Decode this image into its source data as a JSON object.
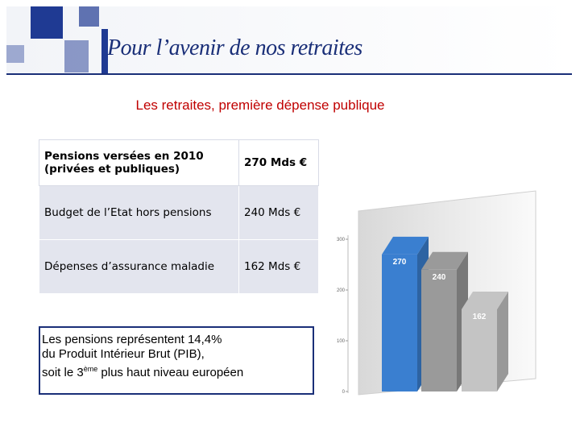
{
  "header": {
    "title": "Pour l’avenir de nos retraites"
  },
  "slide_title": "Les retraites, première dépense publique",
  "table": {
    "rows": [
      [
        "Pensions versées en 2010 (privées et publiques)",
        "270 Mds €"
      ],
      [
        "Budget de l’Etat hors pensions",
        "240 Mds €"
      ],
      [
        "Dépenses d’assurance maladie",
        "162 Mds €"
      ]
    ]
  },
  "callout": {
    "lines": [
      "Les pensions représentent 14,4%",
      "du Produit Intérieur Brut (PIB),"
    ],
    "last": [
      "soit le 3",
      "ème",
      "plus haut niveau européen"
    ]
  },
  "chart_data": {
    "type": "bar",
    "categories": [
      null,
      null,
      null
    ],
    "values": [
      270,
      240,
      162
    ],
    "colors": [
      "#3a7fd0",
      "#9a9a9a",
      "#c4c4c4"
    ],
    "ylim": [
      0,
      300
    ],
    "yticks": [
      0,
      100,
      200,
      300
    ]
  }
}
